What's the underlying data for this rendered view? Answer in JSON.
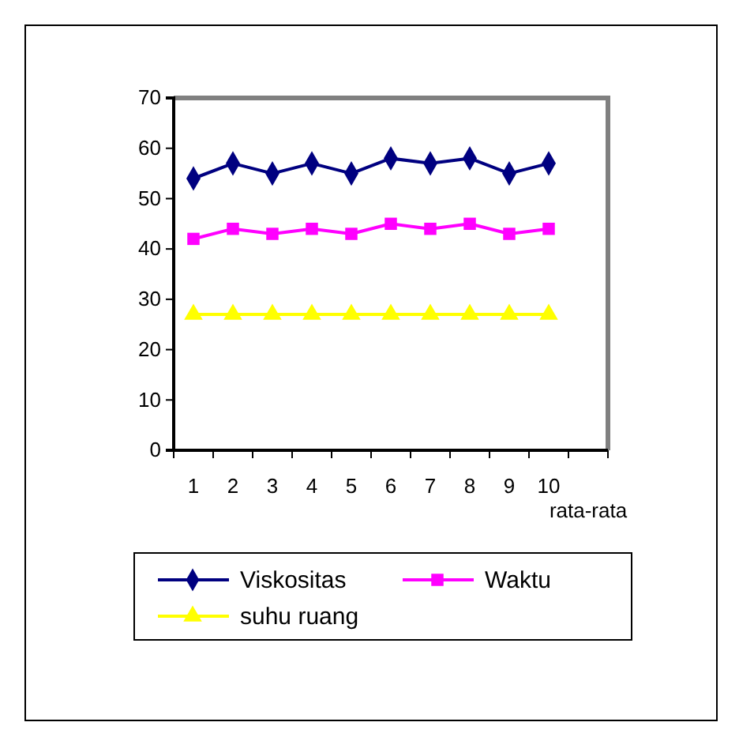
{
  "chart_data": {
    "type": "line",
    "categories": [
      "1",
      "2",
      "3",
      "4",
      "5",
      "6",
      "7",
      "8",
      "9",
      "10",
      "rata-rata"
    ],
    "series": [
      {
        "name": "Viskositas",
        "color": "#000080",
        "marker": "diamond",
        "values": [
          54,
          57,
          55,
          57,
          55,
          58,
          57,
          58,
          55,
          57,
          null
        ]
      },
      {
        "name": "Waktu",
        "color": "#ff00ff",
        "marker": "square",
        "values": [
          42,
          44,
          43,
          44,
          43,
          45,
          44,
          45,
          43,
          44,
          null
        ]
      },
      {
        "name": "suhu ruang",
        "color": "#ffff00",
        "marker": "triangle",
        "values": [
          27,
          27,
          27,
          27,
          27,
          27,
          27,
          27,
          27,
          27,
          null
        ]
      }
    ],
    "ylim": [
      0,
      70
    ],
    "yticks": [
      0,
      10,
      20,
      30,
      40,
      50,
      60,
      70
    ],
    "grid": false,
    "legend": "bottom",
    "line_style": "solid"
  }
}
